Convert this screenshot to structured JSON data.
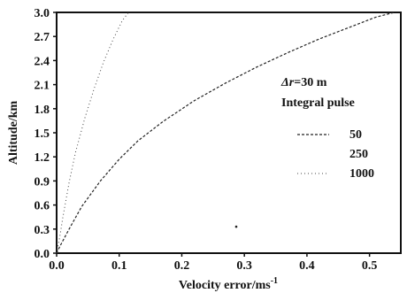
{
  "chart_data": {
    "type": "line",
    "title": "",
    "xlabel": "Velocity error/ms",
    "xlabel_superscript": "-1",
    "ylabel": "Altitude/km",
    "xlim": [
      0.0,
      0.55
    ],
    "ylim": [
      0.0,
      3.0
    ],
    "xticks": [
      "0.0",
      "0.1",
      "0.2",
      "0.3",
      "0.4",
      "0.5"
    ],
    "yticks": [
      "0.0",
      "0.3",
      "0.6",
      "0.9",
      "1.2",
      "1.5",
      "1.8",
      "2.1",
      "2.4",
      "2.7",
      "3.0"
    ],
    "grid": false,
    "legend": {
      "placement": "right",
      "header_line1_symbol": "Δr",
      "header_line1_rest": "=30 m",
      "header_line2": "Integral pulse",
      "entries": [
        "50",
        "250",
        "1000"
      ]
    },
    "series": [
      {
        "name": "50",
        "style": "dashed",
        "x": [
          0.0,
          0.005,
          0.02,
          0.04,
          0.07,
          0.1,
          0.13,
          0.17,
          0.22,
          0.27,
          0.32,
          0.37,
          0.42,
          0.47,
          0.51,
          0.54
        ],
        "y": [
          0.0,
          0.08,
          0.3,
          0.58,
          0.9,
          1.17,
          1.4,
          1.64,
          1.9,
          2.12,
          2.32,
          2.5,
          2.67,
          2.82,
          2.94,
          3.0
        ]
      },
      {
        "name": "250",
        "style": "dotted",
        "x": [
          0.0,
          0.005,
          0.01,
          0.02,
          0.03,
          0.045,
          0.06,
          0.075,
          0.09,
          0.105,
          0.115
        ],
        "y": [
          0.0,
          0.2,
          0.45,
          0.88,
          1.25,
          1.68,
          2.05,
          2.38,
          2.66,
          2.9,
          3.0
        ]
      },
      {
        "name": "1000",
        "style": "dotted",
        "x": [
          0.287
        ],
        "y": [
          0.33
        ]
      }
    ]
  }
}
